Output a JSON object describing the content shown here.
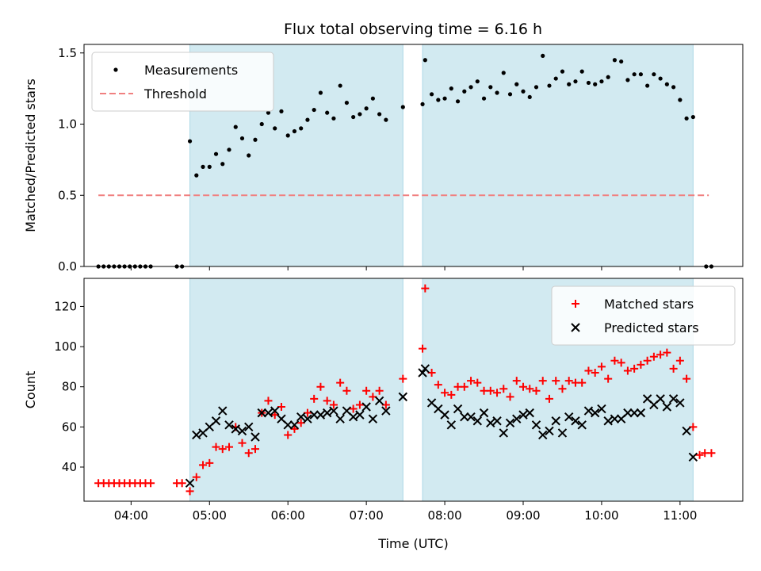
{
  "title": "Flux total observing time = 6.16 h",
  "colors": {
    "band": "#add8e6",
    "measurements": "#000000",
    "threshold": "#f08080",
    "matched": "#ff0000",
    "predicted": "#000000"
  },
  "shaded_intervals": [
    [
      "04:45",
      "07:28"
    ],
    [
      "07:43",
      "11:10"
    ]
  ],
  "chart_data": [
    {
      "type": "scatter",
      "title": "Flux total observing time = 6.16 h",
      "xlabel": "",
      "ylabel": "Matched/Predicted stars",
      "xlim": [
        "03:24",
        "11:48"
      ],
      "ylim": [
        0,
        1.56
      ],
      "x_ticks": [
        "04:00",
        "05:00",
        "06:00",
        "07:00",
        "08:00",
        "09:00",
        "10:00",
        "11:00"
      ],
      "y_ticks": [
        "0.0",
        "0.5",
        "1.0",
        "1.5"
      ],
      "legend_position": "top-left",
      "threshold": {
        "name": "Threshold",
        "y": 0.5,
        "x_range": [
          "03:35",
          "11:22"
        ]
      },
      "series": [
        {
          "name": "Measurements",
          "points": [
            [
              "03:35",
              0
            ],
            [
              "03:39",
              0
            ],
            [
              "03:43",
              0
            ],
            [
              "03:47",
              0
            ],
            [
              "03:51",
              0
            ],
            [
              "03:55",
              0
            ],
            [
              "03:59",
              0
            ],
            [
              "04:03",
              0
            ],
            [
              "04:07",
              0
            ],
            [
              "04:11",
              0
            ],
            [
              "04:15",
              0
            ],
            [
              "04:35",
              0
            ],
            [
              "04:39",
              0
            ],
            [
              "04:45",
              0.88
            ],
            [
              "04:50",
              0.64
            ],
            [
              "04:55",
              0.7
            ],
            [
              "05:00",
              0.7
            ],
            [
              "05:05",
              0.79
            ],
            [
              "05:10",
              0.72
            ],
            [
              "05:15",
              0.82
            ],
            [
              "05:20",
              0.98
            ],
            [
              "05:25",
              0.9
            ],
            [
              "05:30",
              0.78
            ],
            [
              "05:35",
              0.89
            ],
            [
              "05:40",
              1.0
            ],
            [
              "05:45",
              1.08
            ],
            [
              "05:50",
              0.97
            ],
            [
              "05:55",
              1.09
            ],
            [
              "06:00",
              0.92
            ],
            [
              "06:05",
              0.95
            ],
            [
              "06:10",
              0.97
            ],
            [
              "06:15",
              1.03
            ],
            [
              "06:20",
              1.1
            ],
            [
              "06:25",
              1.22
            ],
            [
              "06:30",
              1.08
            ],
            [
              "06:35",
              1.04
            ],
            [
              "06:40",
              1.27
            ],
            [
              "06:45",
              1.15
            ],
            [
              "06:50",
              1.05
            ],
            [
              "06:55",
              1.07
            ],
            [
              "07:00",
              1.11
            ],
            [
              "07:05",
              1.18
            ],
            [
              "07:10",
              1.07
            ],
            [
              "07:15",
              1.03
            ],
            [
              "07:28",
              1.12
            ],
            [
              "07:43",
              1.14
            ],
            [
              "07:45",
              1.45
            ],
            [
              "07:50",
              1.21
            ],
            [
              "07:55",
              1.17
            ],
            [
              "08:00",
              1.18
            ],
            [
              "08:05",
              1.25
            ],
            [
              "08:10",
              1.16
            ],
            [
              "08:15",
              1.23
            ],
            [
              "08:20",
              1.26
            ],
            [
              "08:25",
              1.3
            ],
            [
              "08:30",
              1.18
            ],
            [
              "08:35",
              1.26
            ],
            [
              "08:40",
              1.22
            ],
            [
              "08:45",
              1.36
            ],
            [
              "08:50",
              1.21
            ],
            [
              "08:55",
              1.28
            ],
            [
              "09:00",
              1.23
            ],
            [
              "09:05",
              1.19
            ],
            [
              "09:10",
              1.26
            ],
            [
              "09:15",
              1.48
            ],
            [
              "09:20",
              1.27
            ],
            [
              "09:25",
              1.32
            ],
            [
              "09:30",
              1.37
            ],
            [
              "09:35",
              1.28
            ],
            [
              "09:40",
              1.3
            ],
            [
              "09:45",
              1.37
            ],
            [
              "09:50",
              1.29
            ],
            [
              "09:55",
              1.28
            ],
            [
              "10:00",
              1.3
            ],
            [
              "10:05",
              1.33
            ],
            [
              "10:10",
              1.45
            ],
            [
              "10:15",
              1.44
            ],
            [
              "10:20",
              1.31
            ],
            [
              "10:25",
              1.35
            ],
            [
              "10:30",
              1.35
            ],
            [
              "10:35",
              1.27
            ],
            [
              "10:40",
              1.35
            ],
            [
              "10:45",
              1.32
            ],
            [
              "10:50",
              1.28
            ],
            [
              "10:55",
              1.26
            ],
            [
              "11:00",
              1.17
            ],
            [
              "11:05",
              1.04
            ],
            [
              "11:10",
              1.05
            ],
            [
              "11:20",
              0
            ],
            [
              "11:24",
              0
            ]
          ]
        }
      ]
    },
    {
      "type": "scatter",
      "title": "",
      "xlabel": "Time (UTC)",
      "ylabel": "Count",
      "xlim": [
        "03:24",
        "11:48"
      ],
      "ylim": [
        23,
        134
      ],
      "x_ticks": [
        "04:00",
        "05:00",
        "06:00",
        "07:00",
        "08:00",
        "09:00",
        "10:00",
        "11:00"
      ],
      "y_ticks": [
        "40",
        "60",
        "80",
        "100",
        "120"
      ],
      "legend_position": "top-right",
      "series": [
        {
          "name": "Matched stars",
          "points": [
            [
              "03:35",
              32
            ],
            [
              "03:39",
              32
            ],
            [
              "03:43",
              32
            ],
            [
              "03:47",
              32
            ],
            [
              "03:51",
              32
            ],
            [
              "03:55",
              32
            ],
            [
              "03:59",
              32
            ],
            [
              "04:03",
              32
            ],
            [
              "04:07",
              32
            ],
            [
              "04:11",
              32
            ],
            [
              "04:15",
              32
            ],
            [
              "04:35",
              32
            ],
            [
              "04:39",
              32
            ],
            [
              "04:45",
              28
            ],
            [
              "04:50",
              35
            ],
            [
              "04:55",
              41
            ],
            [
              "05:00",
              42
            ],
            [
              "05:05",
              50
            ],
            [
              "05:10",
              49
            ],
            [
              "05:15",
              50
            ],
            [
              "05:20",
              60
            ],
            [
              "05:25",
              52
            ],
            [
              "05:30",
              47
            ],
            [
              "05:35",
              49
            ],
            [
              "05:40",
              67
            ],
            [
              "05:45",
              73
            ],
            [
              "05:50",
              66
            ],
            [
              "05:55",
              70
            ],
            [
              "06:00",
              56
            ],
            [
              "06:05",
              59
            ],
            [
              "06:10",
              62
            ],
            [
              "06:15",
              67
            ],
            [
              "06:20",
              74
            ],
            [
              "06:25",
              80
            ],
            [
              "06:30",
              73
            ],
            [
              "06:35",
              71
            ],
            [
              "06:40",
              82
            ],
            [
              "06:45",
              78
            ],
            [
              "06:50",
              69
            ],
            [
              "06:55",
              71
            ],
            [
              "07:00",
              78
            ],
            [
              "07:05",
              75
            ],
            [
              "07:10",
              78
            ],
            [
              "07:15",
              71
            ],
            [
              "07:28",
              84
            ],
            [
              "07:43",
              99
            ],
            [
              "07:45",
              129
            ],
            [
              "07:50",
              87
            ],
            [
              "07:55",
              81
            ],
            [
              "08:00",
              77
            ],
            [
              "08:05",
              76
            ],
            [
              "08:10",
              80
            ],
            [
              "08:15",
              80
            ],
            [
              "08:20",
              83
            ],
            [
              "08:25",
              82
            ],
            [
              "08:30",
              78
            ],
            [
              "08:35",
              78
            ],
            [
              "08:40",
              77
            ],
            [
              "08:45",
              79
            ],
            [
              "08:50",
              75
            ],
            [
              "08:55",
              83
            ],
            [
              "09:00",
              80
            ],
            [
              "09:05",
              79
            ],
            [
              "09:10",
              78
            ],
            [
              "09:15",
              83
            ],
            [
              "09:20",
              74
            ],
            [
              "09:25",
              83
            ],
            [
              "09:30",
              79
            ],
            [
              "09:35",
              83
            ],
            [
              "09:40",
              82
            ],
            [
              "09:45",
              82
            ],
            [
              "09:50",
              88
            ],
            [
              "09:55",
              87
            ],
            [
              "10:00",
              90
            ],
            [
              "10:05",
              84
            ],
            [
              "10:10",
              93
            ],
            [
              "10:15",
              92
            ],
            [
              "10:20",
              88
            ],
            [
              "10:25",
              89
            ],
            [
              "10:30",
              91
            ],
            [
              "10:35",
              93
            ],
            [
              "10:40",
              95
            ],
            [
              "10:45",
              96
            ],
            [
              "10:50",
              97
            ],
            [
              "10:55",
              89
            ],
            [
              "11:00",
              93
            ],
            [
              "11:05",
              84
            ],
            [
              "11:10",
              60
            ],
            [
              "11:15",
              46
            ],
            [
              "11:19",
              47
            ],
            [
              "11:24",
              47
            ]
          ]
        },
        {
          "name": "Predicted stars",
          "points": [
            [
              "04:45",
              32
            ],
            [
              "04:50",
              56
            ],
            [
              "04:55",
              57
            ],
            [
              "05:00",
              60
            ],
            [
              "05:05",
              63
            ],
            [
              "05:10",
              68
            ],
            [
              "05:15",
              61
            ],
            [
              "05:20",
              59
            ],
            [
              "05:25",
              58
            ],
            [
              "05:30",
              60
            ],
            [
              "05:35",
              55
            ],
            [
              "05:40",
              67
            ],
            [
              "05:45",
              67
            ],
            [
              "05:50",
              68
            ],
            [
              "05:55",
              64
            ],
            [
              "06:00",
              61
            ],
            [
              "06:05",
              61
            ],
            [
              "06:10",
              65
            ],
            [
              "06:15",
              64
            ],
            [
              "06:20",
              66
            ],
            [
              "06:25",
              66
            ],
            [
              "06:30",
              67
            ],
            [
              "06:35",
              68
            ],
            [
              "06:40",
              64
            ],
            [
              "06:45",
              68
            ],
            [
              "06:50",
              65
            ],
            [
              "06:55",
              66
            ],
            [
              "07:00",
              70
            ],
            [
              "07:05",
              64
            ],
            [
              "07:10",
              73
            ],
            [
              "07:15",
              68
            ],
            [
              "07:28",
              75
            ],
            [
              "07:43",
              87
            ],
            [
              "07:45",
              89
            ],
            [
              "07:50",
              72
            ],
            [
              "07:55",
              69
            ],
            [
              "08:00",
              66
            ],
            [
              "08:05",
              61
            ],
            [
              "08:10",
              69
            ],
            [
              "08:15",
              65
            ],
            [
              "08:20",
              65
            ],
            [
              "08:25",
              63
            ],
            [
              "08:30",
              67
            ],
            [
              "08:35",
              62
            ],
            [
              "08:40",
              63
            ],
            [
              "08:45",
              57
            ],
            [
              "08:50",
              62
            ],
            [
              "08:55",
              64
            ],
            [
              "09:00",
              66
            ],
            [
              "09:05",
              67
            ],
            [
              "09:10",
              61
            ],
            [
              "09:15",
              56
            ],
            [
              "09:20",
              58
            ],
            [
              "09:25",
              63
            ],
            [
              "09:30",
              57
            ],
            [
              "09:35",
              65
            ],
            [
              "09:40",
              63
            ],
            [
              "09:45",
              61
            ],
            [
              "09:50",
              68
            ],
            [
              "09:55",
              67
            ],
            [
              "10:00",
              69
            ],
            [
              "10:05",
              63
            ],
            [
              "10:10",
              64
            ],
            [
              "10:15",
              64
            ],
            [
              "10:20",
              67
            ],
            [
              "10:25",
              67
            ],
            [
              "10:30",
              67
            ],
            [
              "10:35",
              74
            ],
            [
              "10:40",
              71
            ],
            [
              "10:45",
              74
            ],
            [
              "10:50",
              70
            ],
            [
              "10:55",
              74
            ],
            [
              "11:00",
              72
            ],
            [
              "11:05",
              58
            ],
            [
              "11:10",
              45
            ]
          ]
        }
      ]
    }
  ]
}
